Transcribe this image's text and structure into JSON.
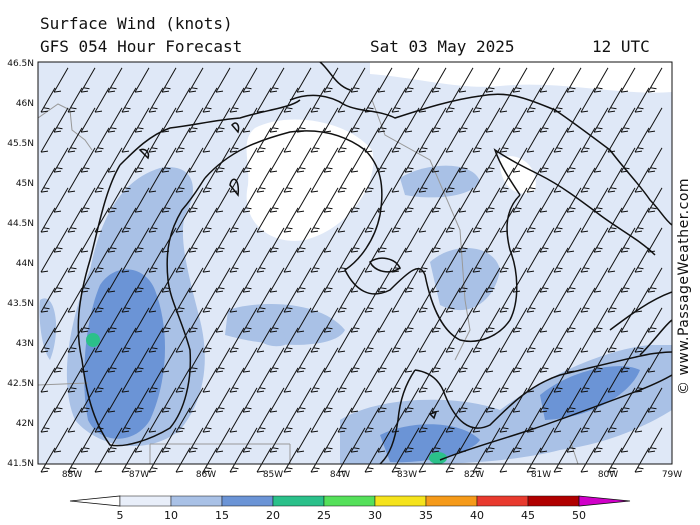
{
  "header": {
    "title": "Surface Wind (knots)",
    "model": "GFS 054 Hour Forecast",
    "date": "Sat 03 May 2025",
    "time": "12 UTC"
  },
  "copyright": "© www.PassageWeather.com",
  "lat_labels": [
    "46.5N",
    "46N",
    "45.5N",
    "45N",
    "44.5N",
    "44N",
    "43.5N",
    "43N",
    "42.5N",
    "42N",
    "41.5N"
  ],
  "lon_labels": [
    "88W",
    "87W",
    "86W",
    "85W",
    "84W",
    "83W",
    "82W",
    "81W",
    "80W",
    "79W"
  ],
  "colorbar": {
    "labels": [
      "5",
      "10",
      "15",
      "20",
      "25",
      "30",
      "35",
      "40",
      "45",
      "50"
    ],
    "colors": [
      "#e8eef9",
      "#a9c1e6",
      "#6b94d6",
      "#2bc08a",
      "#55e05a",
      "#f5e31c",
      "#f59a1a",
      "#e83a2e",
      "#b00000",
      "#d000c8"
    ]
  },
  "colors": {
    "calm": "#ffffff",
    "light": "#dfe8f7",
    "medium": "#a9c1e6",
    "strong": "#6b94d6",
    "accent": "#2bc08a"
  },
  "wind": {
    "direction": "southwest",
    "speed_range_knots": [
      5,
      25
    ]
  }
}
